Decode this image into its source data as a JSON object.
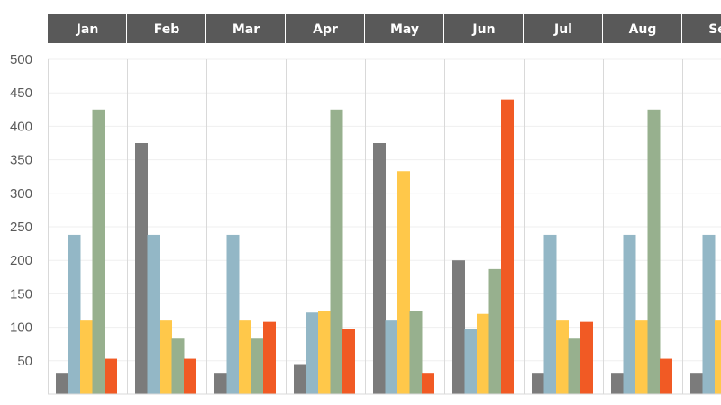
{
  "chart_data": {
    "type": "bar",
    "categories": [
      "Jan",
      "Feb",
      "Mar",
      "Apr",
      "May",
      "Jun",
      "Jul",
      "Aug",
      "Sep"
    ],
    "series": [
      {
        "color": "#7b7b7b",
        "values": [
          32,
          375,
          32,
          45,
          375,
          200,
          32,
          32,
          32
        ]
      },
      {
        "color": "#93b7c6",
        "values": [
          238,
          238,
          238,
          122,
          110,
          98,
          238,
          238,
          238
        ]
      },
      {
        "color": "#ffc84a",
        "values": [
          110,
          110,
          110,
          125,
          333,
          120,
          110,
          110,
          110
        ]
      },
      {
        "color": "#97b08e",
        "values": [
          425,
          83,
          83,
          425,
          125,
          187,
          83,
          425,
          null
        ]
      },
      {
        "color": "#f15a24",
        "values": [
          53,
          53,
          108,
          98,
          32,
          440,
          108,
          53,
          null
        ]
      }
    ],
    "yticks": [
      "50",
      "100",
      "150",
      "200",
      "250",
      "300",
      "350",
      "400",
      "450",
      "500"
    ],
    "ylim": [
      0,
      500
    ],
    "grid": true,
    "header_background": "#595959"
  }
}
